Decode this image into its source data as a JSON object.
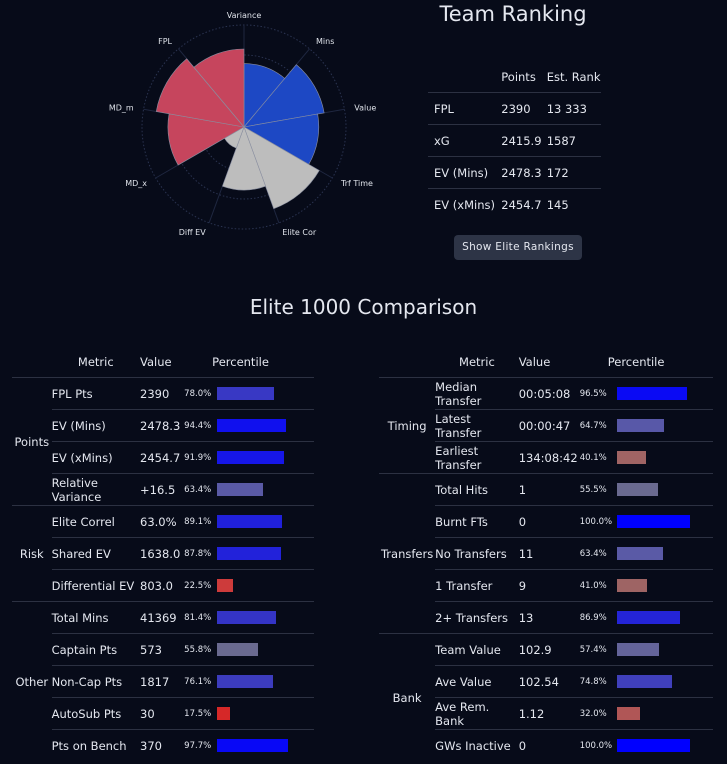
{
  "team_ranking": {
    "title": "Team Ranking",
    "headers": [
      "",
      "Points",
      "Est. Rank"
    ],
    "rows": [
      {
        "metric": "FPL",
        "points": "2390",
        "rank": "13 333"
      },
      {
        "metric": "xG",
        "points": "2415.9",
        "rank": "1587"
      },
      {
        "metric": "EV (Mins)",
        "points": "2478.3",
        "rank": "172"
      },
      {
        "metric": "EV (xMins)",
        "points": "2454.7",
        "rank": "145"
      }
    ],
    "button_label": "Show Elite Rankings"
  },
  "chart_data": {
    "type": "polar-area",
    "categories": [
      "Variance",
      "Mins",
      "Value",
      "Trf Time",
      "Elite Cor",
      "Diff EV",
      "MD_x",
      "MD_m",
      "FPL"
    ],
    "values": [
      63.4,
      81.4,
      74.8,
      86.9,
      63.0,
      22.5,
      76.1,
      89.1,
      78.0
    ],
    "colors": [
      "#1d48c4",
      "#1d48c4",
      "#1d48c4",
      "#bdbdbd",
      "#bdbdbd",
      "#bdbdbd",
      "#c6455d",
      "#c6455d",
      "#c6455d"
    ],
    "rlim": [
      0,
      100
    ]
  },
  "elite": {
    "title": "Elite 1000 Comparison",
    "headers": {
      "metric": "Metric",
      "value": "Value",
      "percentile": "Percentile"
    },
    "left_groups": [
      {
        "group": "Points",
        "rows": [
          {
            "metric": "FPL Pts",
            "value": "2390",
            "pct": "78.0%",
            "frac": 0.78,
            "color": "#3838c4"
          },
          {
            "metric": "EV (Mins)",
            "value": "2478.3",
            "pct": "94.4%",
            "frac": 0.944,
            "color": "#1010ee"
          },
          {
            "metric": "EV (xMins)",
            "value": "2454.7",
            "pct": "91.9%",
            "frac": 0.919,
            "color": "#1616e8"
          },
          {
            "metric": "Relative Variance",
            "value": "+16.5",
            "pct": "63.4%",
            "frac": 0.634,
            "color": "#5a5aa6"
          }
        ]
      },
      {
        "group": "Risk",
        "rows": [
          {
            "metric": "Elite Correl",
            "value": "63.0%",
            "pct": "89.1%",
            "frac": 0.891,
            "color": "#2020dc"
          },
          {
            "metric": "Shared EV",
            "value": "1638.0",
            "pct": "87.8%",
            "frac": 0.878,
            "color": "#2222da"
          },
          {
            "metric": "Differential EV",
            "value": "803.0",
            "pct": "22.5%",
            "frac": 0.225,
            "color": "#cd3b3b"
          }
        ]
      },
      {
        "group": "Other",
        "rows": [
          {
            "metric": "Total Mins",
            "value": "41369",
            "pct": "81.4%",
            "frac": 0.814,
            "color": "#3434c6"
          },
          {
            "metric": "Captain Pts",
            "value": "573",
            "pct": "55.8%",
            "frac": 0.558,
            "color": "#6a6a90"
          },
          {
            "metric": "Non-Cap Pts",
            "value": "1817",
            "pct": "76.1%",
            "frac": 0.761,
            "color": "#3c3cbe"
          },
          {
            "metric": "AutoSub Pts",
            "value": "30",
            "pct": "17.5%",
            "frac": 0.175,
            "color": "#d62828"
          },
          {
            "metric": "Pts on Bench",
            "value": "370",
            "pct": "97.7%",
            "frac": 0.977,
            "color": "#0808f6"
          }
        ]
      }
    ],
    "right_groups": [
      {
        "group": "Timing",
        "rows": [
          {
            "metric": "Median Transfer",
            "value": "00:05:08",
            "pct": "96.5%",
            "frac": 0.965,
            "color": "#0a0af4"
          },
          {
            "metric": "Latest Transfer",
            "value": "00:00:47",
            "pct": "64.7%",
            "frac": 0.647,
            "color": "#5858a8"
          },
          {
            "metric": "Earliest Transfer",
            "value": "134:08:42",
            "pct": "40.1%",
            "frac": 0.401,
            "color": "#a06464"
          }
        ]
      },
      {
        "group": "Transfers",
        "rows": [
          {
            "metric": "Total Hits",
            "value": "1",
            "pct": "55.5%",
            "frac": 0.555,
            "color": "#6a6a90"
          },
          {
            "metric": "Burnt FTs",
            "value": "0",
            "pct": "100.0%",
            "frac": 1.0,
            "color": "#0000ff"
          },
          {
            "metric": "No Transfers",
            "value": "11",
            "pct": "63.4%",
            "frac": 0.634,
            "color": "#5a5aa6"
          },
          {
            "metric": "1 Transfer",
            "value": "9",
            "pct": "41.0%",
            "frac": 0.41,
            "color": "#9e6464"
          },
          {
            "metric": "2+ Transfers",
            "value": "13",
            "pct": "86.9%",
            "frac": 0.869,
            "color": "#2424d8"
          }
        ]
      },
      {
        "group": "Bank",
        "rows": [
          {
            "metric": "Team Value",
            "value": "102.9",
            "pct": "57.4%",
            "frac": 0.574,
            "color": "#64649a"
          },
          {
            "metric": "Ave Value",
            "value": "102.54",
            "pct": "74.8%",
            "frac": 0.748,
            "color": "#4040bc"
          },
          {
            "metric": "Ave Rem. Bank",
            "value": "1.12",
            "pct": "32.0%",
            "frac": 0.32,
            "color": "#b05656"
          },
          {
            "metric": "GWs Inactive",
            "value": "0",
            "pct": "100.0%",
            "frac": 1.0,
            "color": "#0000ff"
          }
        ]
      }
    ]
  }
}
